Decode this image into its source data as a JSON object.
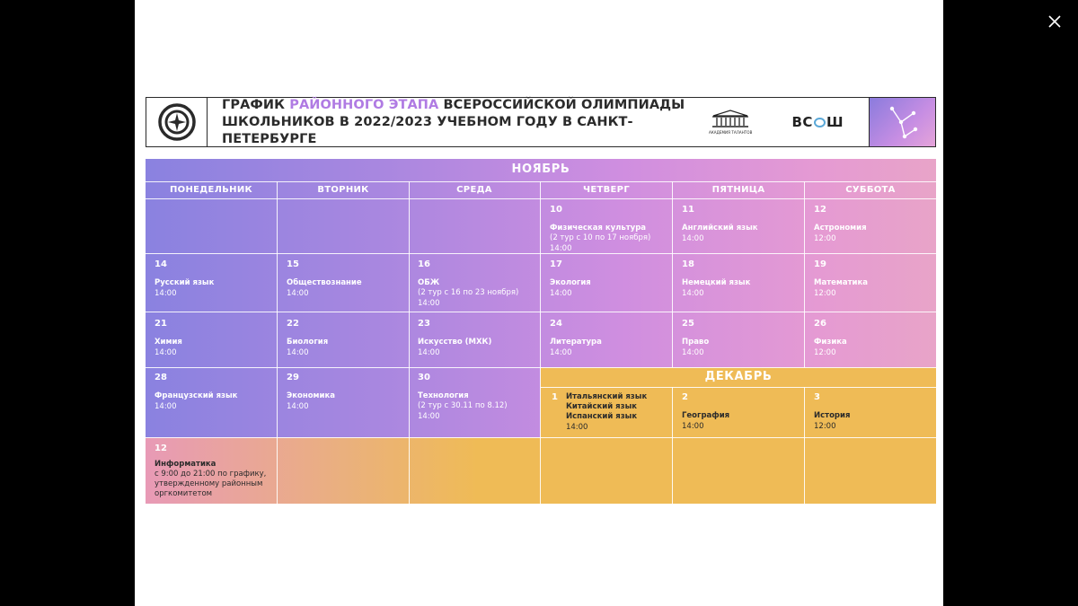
{
  "banner": {
    "title_line1_a": "ГРАФИК ",
    "title_line1_hl": "РАЙОННОГО ЭТАПА",
    "title_line1_b": " ВСЕРОССИЙСКОЙ ОЛИМПИАДЫ",
    "title_line2": "ШКОЛЬНИКОВ В 2022/2023 УЧЕБНОМ ГОДУ В САНКТ-ПЕТЕРБУРГЕ",
    "academy_label": "АКАДЕМИЯ ТАЛАНТОВ",
    "vsosh_left": "ВС",
    "vsosh_right": "Ш"
  },
  "calendar": {
    "november_title": "НОЯБРЬ",
    "december_title": "ДЕКАБРЬ",
    "weekdays": [
      "ПОНЕДЕЛЬНИК",
      "ВТОРНИК",
      "СРЕДА",
      "ЧЕТВЕРГ",
      "ПЯТНИЦА",
      "СУББОТА"
    ],
    "cells": {
      "d10": {
        "num": "10",
        "subj": "Физическая культура",
        "note": "(2 тур с 10 по 17 ноября)",
        "time": "14:00"
      },
      "d11": {
        "num": "11",
        "subj": "Английский язык",
        "time": "14:00"
      },
      "d12": {
        "num": "12",
        "subj": "Астрономия",
        "time": "12:00"
      },
      "d14": {
        "num": "14",
        "subj": "Русский язык",
        "time": "14:00"
      },
      "d15": {
        "num": "15",
        "subj": "Обществознание",
        "time": "14:00"
      },
      "d16": {
        "num": "16",
        "subj": "ОБЖ",
        "note": "(2 тур с 16 по 23 ноября)",
        "time": "14:00"
      },
      "d17": {
        "num": "17",
        "subj": "Экология",
        "time": "14:00"
      },
      "d18": {
        "num": "18",
        "subj": "Немецкий язык",
        "time": "14:00"
      },
      "d19": {
        "num": "19",
        "subj": "Математика",
        "time": "12:00"
      },
      "d21": {
        "num": "21",
        "subj": "Химия",
        "time": "14:00"
      },
      "d22": {
        "num": "22",
        "subj": "Биология",
        "time": "14:00"
      },
      "d23": {
        "num": "23",
        "subj": "Искусство (МХК)",
        "time": "14:00"
      },
      "d24": {
        "num": "24",
        "subj": "Литература",
        "time": "14:00"
      },
      "d25": {
        "num": "25",
        "subj": "Право",
        "time": "14:00"
      },
      "d26": {
        "num": "26",
        "subj": "Физика",
        "time": "12:00"
      },
      "d28": {
        "num": "28",
        "subj": "Французский язык",
        "time": "14:00"
      },
      "d29": {
        "num": "29",
        "subj": "Экономика",
        "time": "14:00"
      },
      "d30": {
        "num": "30",
        "subj": "Технология",
        "note": "(2 тур с 30.11 по 8.12)",
        "time": "14:00"
      },
      "dec1": {
        "num": "1",
        "subj1": "Итальянский язык",
        "subj2": "Китайский язык",
        "subj3": "Испанский язык",
        "time": "14:00"
      },
      "dec2": {
        "num": "2",
        "subj": "География",
        "time": "14:00"
      },
      "dec3": {
        "num": "3",
        "subj": "История",
        "time": "12:00"
      },
      "dec12": {
        "num": "12",
        "subj": "Информатика",
        "note1": "с 9:00 до 21:00 по графику,",
        "note2": "утвержденному районным",
        "note3": "оргкомитетом"
      }
    }
  }
}
